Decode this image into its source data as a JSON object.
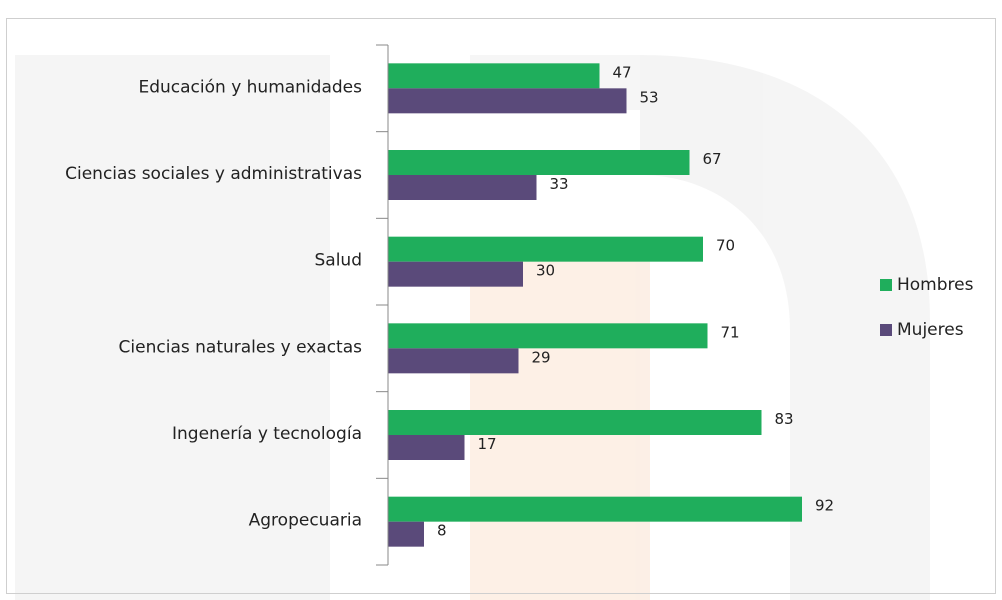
{
  "chart_data": {
    "type": "hbar",
    "categories": [
      "Educación y humanidades",
      "Ciencias sociales y administrativas",
      "Salud",
      "Ciencias naturales y exactas",
      "Ingenería y tecnología",
      "Agropecuaria"
    ],
    "series": [
      {
        "name": "Hombres",
        "color": "#1fae5c",
        "values": [
          47,
          67,
          70,
          71,
          83,
          92
        ]
      },
      {
        "name": "Mujeres",
        "color": "#5a4a7a",
        "values": [
          53,
          33,
          30,
          29,
          17,
          8
        ]
      }
    ],
    "xlim": [
      0,
      100
    ],
    "legend": "right"
  }
}
